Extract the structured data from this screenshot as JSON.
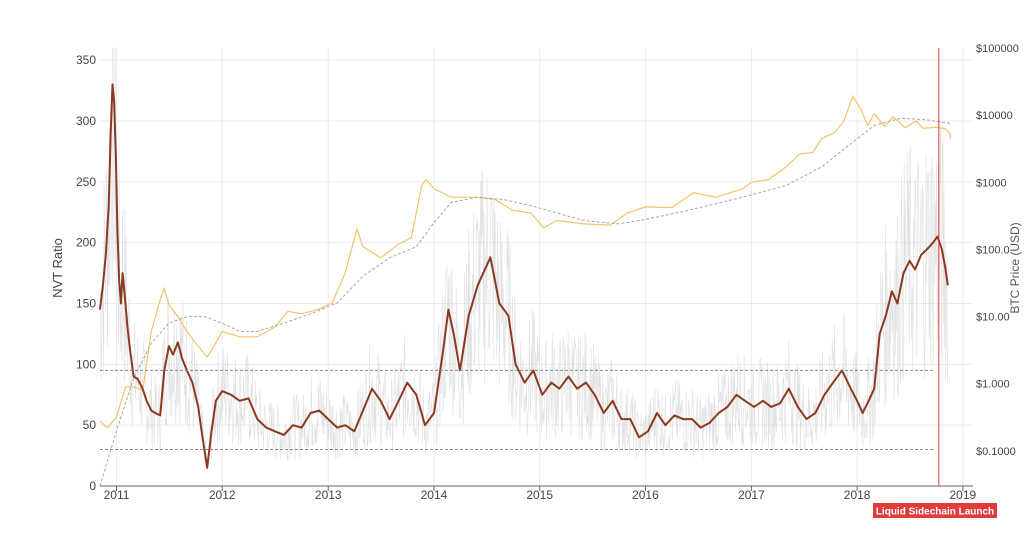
{
  "chart_data": {
    "type": "line",
    "y_axis_label": "NVT Ratio",
    "y2_axis_label": "BTC Price (USD)",
    "ylim": [
      0,
      360
    ],
    "y_ticks": [
      0,
      50,
      100,
      150,
      200,
      250,
      300,
      350
    ],
    "y2_scale": "log",
    "y2lim": [
      0.03,
      100000
    ],
    "y2_ticks": [
      {
        "value": 100000,
        "label": "$100000"
      },
      {
        "value": 10000,
        "label": "$10000"
      },
      {
        "value": 1000,
        "label": "$1000"
      },
      {
        "value": 100,
        "label": "$100.0"
      },
      {
        "value": 10,
        "label": "$10.00"
      },
      {
        "value": 1,
        "label": "$1.000"
      },
      {
        "value": 0.1,
        "label": "$0.1000"
      }
    ],
    "x_range": [
      "2010-11-05",
      "2019-02-05"
    ],
    "x_ticks": [
      {
        "date": "2011-01-01",
        "label": "2011"
      },
      {
        "date": "2012-01-01",
        "label": "2012"
      },
      {
        "date": "2013-01-01",
        "label": "2013"
      },
      {
        "date": "2014-01-01",
        "label": "2014"
      },
      {
        "date": "2015-01-01",
        "label": "2015"
      },
      {
        "date": "2016-01-01",
        "label": "2016"
      },
      {
        "date": "2017-01-01",
        "label": "2017"
      },
      {
        "date": "2018-01-01",
        "label": "2018"
      },
      {
        "date": "2019-01-01",
        "label": "2019"
      }
    ],
    "reference_lines": [
      95,
      30
    ],
    "annotation": {
      "date": "2018-10-10",
      "label": "Liquid Sidechain Launch"
    },
    "colors": {
      "nvt": "#8b3a22",
      "raw": "#d8d8d8",
      "price": "#f2c46b",
      "price_trend": "#a8a8a8",
      "reference": "#888888",
      "annotation": "#e23b3b",
      "grid": "#ececec"
    },
    "series": [
      {
        "key": "nvt",
        "points": [
          [
            "2010-11-05",
            145
          ],
          [
            "2010-11-15",
            165
          ],
          [
            "2010-11-25",
            190
          ],
          [
            "2010-12-05",
            230
          ],
          [
            "2010-12-12",
            290
          ],
          [
            "2010-12-18",
            330
          ],
          [
            "2010-12-24",
            315
          ],
          [
            "2010-12-30",
            270
          ],
          [
            "2011-01-04",
            210
          ],
          [
            "2011-01-10",
            170
          ],
          [
            "2011-01-16",
            150
          ],
          [
            "2011-01-22",
            175
          ],
          [
            "2011-01-30",
            155
          ],
          [
            "2011-02-08",
            130
          ],
          [
            "2011-02-18",
            110
          ],
          [
            "2011-03-01",
            90
          ],
          [
            "2011-03-15",
            88
          ],
          [
            "2011-04-01",
            80
          ],
          [
            "2011-04-15",
            70
          ],
          [
            "2011-05-01",
            62
          ],
          [
            "2011-05-15",
            60
          ],
          [
            "2011-06-01",
            58
          ],
          [
            "2011-06-15",
            95
          ],
          [
            "2011-07-01",
            115
          ],
          [
            "2011-07-15",
            108
          ],
          [
            "2011-08-01",
            118
          ],
          [
            "2011-08-15",
            105
          ],
          [
            "2011-09-01",
            95
          ],
          [
            "2011-09-20",
            85
          ],
          [
            "2011-10-10",
            65
          ],
          [
            "2011-10-25",
            40
          ],
          [
            "2011-11-10",
            15
          ],
          [
            "2011-11-25",
            45
          ],
          [
            "2011-12-10",
            70
          ],
          [
            "2012-01-01",
            78
          ],
          [
            "2012-02-01",
            75
          ],
          [
            "2012-03-01",
            70
          ],
          [
            "2012-04-01",
            72
          ],
          [
            "2012-05-01",
            55
          ],
          [
            "2012-06-01",
            48
          ],
          [
            "2012-07-01",
            45
          ],
          [
            "2012-08-01",
            42
          ],
          [
            "2012-09-01",
            50
          ],
          [
            "2012-10-01",
            48
          ],
          [
            "2012-11-01",
            60
          ],
          [
            "2012-12-01",
            62
          ],
          [
            "2013-01-01",
            55
          ],
          [
            "2013-02-01",
            48
          ],
          [
            "2013-03-01",
            50
          ],
          [
            "2013-04-01",
            45
          ],
          [
            "2013-05-01",
            62
          ],
          [
            "2013-06-01",
            80
          ],
          [
            "2013-07-01",
            70
          ],
          [
            "2013-08-01",
            55
          ],
          [
            "2013-09-01",
            70
          ],
          [
            "2013-10-01",
            85
          ],
          [
            "2013-11-01",
            75
          ],
          [
            "2013-12-01",
            50
          ],
          [
            "2014-01-01",
            60
          ],
          [
            "2014-02-01",
            110
          ],
          [
            "2014-02-20",
            145
          ],
          [
            "2014-03-10",
            125
          ],
          [
            "2014-04-01",
            95
          ],
          [
            "2014-05-01",
            140
          ],
          [
            "2014-06-01",
            165
          ],
          [
            "2014-07-15",
            188
          ],
          [
            "2014-08-15",
            150
          ],
          [
            "2014-09-15",
            140
          ],
          [
            "2014-10-10",
            100
          ],
          [
            "2014-11-10",
            85
          ],
          [
            "2014-12-10",
            95
          ],
          [
            "2015-01-10",
            75
          ],
          [
            "2015-02-10",
            85
          ],
          [
            "2015-03-10",
            80
          ],
          [
            "2015-04-10",
            90
          ],
          [
            "2015-05-10",
            80
          ],
          [
            "2015-06-10",
            85
          ],
          [
            "2015-07-10",
            75
          ],
          [
            "2015-08-10",
            60
          ],
          [
            "2015-09-10",
            70
          ],
          [
            "2015-10-10",
            55
          ],
          [
            "2015-11-10",
            55
          ],
          [
            "2015-12-10",
            40
          ],
          [
            "2016-01-10",
            45
          ],
          [
            "2016-02-10",
            60
          ],
          [
            "2016-03-10",
            50
          ],
          [
            "2016-04-10",
            58
          ],
          [
            "2016-05-10",
            55
          ],
          [
            "2016-06-10",
            55
          ],
          [
            "2016-07-10",
            48
          ],
          [
            "2016-08-10",
            52
          ],
          [
            "2016-09-10",
            60
          ],
          [
            "2016-10-10",
            65
          ],
          [
            "2016-11-10",
            75
          ],
          [
            "2016-12-10",
            70
          ],
          [
            "2017-01-10",
            65
          ],
          [
            "2017-02-10",
            70
          ],
          [
            "2017-03-10",
            65
          ],
          [
            "2017-04-10",
            68
          ],
          [
            "2017-05-10",
            80
          ],
          [
            "2017-06-10",
            65
          ],
          [
            "2017-07-10",
            55
          ],
          [
            "2017-08-10",
            60
          ],
          [
            "2017-09-10",
            75
          ],
          [
            "2017-10-10",
            85
          ],
          [
            "2017-11-10",
            95
          ],
          [
            "2017-12-10",
            80
          ],
          [
            "2018-01-01",
            70
          ],
          [
            "2018-01-20",
            60
          ],
          [
            "2018-02-10",
            70
          ],
          [
            "2018-03-01",
            80
          ],
          [
            "2018-03-20",
            125
          ],
          [
            "2018-04-10",
            140
          ],
          [
            "2018-05-01",
            160
          ],
          [
            "2018-05-20",
            150
          ],
          [
            "2018-06-10",
            175
          ],
          [
            "2018-07-01",
            185
          ],
          [
            "2018-07-20",
            178
          ],
          [
            "2018-08-10",
            190
          ],
          [
            "2018-09-01",
            195
          ],
          [
            "2018-09-20",
            200
          ],
          [
            "2018-10-05",
            205
          ],
          [
            "2018-10-20",
            195
          ],
          [
            "2018-11-01",
            180
          ],
          [
            "2018-11-10",
            165
          ]
        ]
      },
      {
        "key": "price",
        "points": [
          [
            "2010-11-05",
            0.28
          ],
          [
            "2010-12-01",
            0.22
          ],
          [
            "2011-01-01",
            0.32
          ],
          [
            "2011-02-01",
            0.9
          ],
          [
            "2011-03-01",
            0.9
          ],
          [
            "2011-04-01",
            0.8
          ],
          [
            "2011-05-01",
            6
          ],
          [
            "2011-06-01",
            18
          ],
          [
            "2011-06-15",
            26
          ],
          [
            "2011-07-01",
            15
          ],
          [
            "2011-08-01",
            10
          ],
          [
            "2011-09-01",
            6
          ],
          [
            "2011-10-01",
            4
          ],
          [
            "2011-11-10",
            2.5
          ],
          [
            "2011-12-01",
            3.5
          ],
          [
            "2012-01-01",
            6
          ],
          [
            "2012-03-01",
            5
          ],
          [
            "2012-05-01",
            5
          ],
          [
            "2012-07-01",
            7
          ],
          [
            "2012-08-15",
            12
          ],
          [
            "2012-10-01",
            11
          ],
          [
            "2012-12-01",
            13
          ],
          [
            "2013-01-15",
            16
          ],
          [
            "2013-03-01",
            45
          ],
          [
            "2013-04-10",
            200
          ],
          [
            "2013-05-01",
            110
          ],
          [
            "2013-07-01",
            75
          ],
          [
            "2013-09-01",
            120
          ],
          [
            "2013-10-15",
            150
          ],
          [
            "2013-11-20",
            900
          ],
          [
            "2013-12-05",
            1100
          ],
          [
            "2014-01-01",
            800
          ],
          [
            "2014-03-01",
            600
          ],
          [
            "2014-06-01",
            600
          ],
          [
            "2014-08-01",
            550
          ],
          [
            "2014-10-01",
            380
          ],
          [
            "2014-12-01",
            350
          ],
          [
            "2015-01-15",
            210
          ],
          [
            "2015-03-01",
            270
          ],
          [
            "2015-06-01",
            240
          ],
          [
            "2015-09-01",
            230
          ],
          [
            "2015-11-01",
            350
          ],
          [
            "2016-01-01",
            430
          ],
          [
            "2016-04-01",
            420
          ],
          [
            "2016-06-15",
            700
          ],
          [
            "2016-09-01",
            600
          ],
          [
            "2016-12-01",
            800
          ],
          [
            "2017-01-01",
            1000
          ],
          [
            "2017-03-01",
            1100
          ],
          [
            "2017-05-01",
            1700
          ],
          [
            "2017-06-15",
            2600
          ],
          [
            "2017-08-01",
            2800
          ],
          [
            "2017-09-01",
            4500
          ],
          [
            "2017-10-15",
            5500
          ],
          [
            "2017-11-15",
            8000
          ],
          [
            "2017-12-17",
            19000
          ],
          [
            "2018-01-15",
            12000
          ],
          [
            "2018-02-06",
            7000
          ],
          [
            "2018-03-01",
            10500
          ],
          [
            "2018-04-05",
            6800
          ],
          [
            "2018-05-05",
            9500
          ],
          [
            "2018-06-15",
            6500
          ],
          [
            "2018-07-25",
            8200
          ],
          [
            "2018-08-15",
            6400
          ],
          [
            "2018-10-01",
            6600
          ],
          [
            "2018-11-01",
            6300
          ],
          [
            "2018-11-14",
            5600
          ],
          [
            "2018-11-20",
            4500
          ]
        ]
      },
      {
        "key": "price_trend",
        "points": [
          [
            "2010-11-05",
            0.03
          ],
          [
            "2011-01-01",
            0.2
          ],
          [
            "2011-03-01",
            1.2
          ],
          [
            "2011-05-01",
            4
          ],
          [
            "2011-07-01",
            8
          ],
          [
            "2011-09-01",
            10
          ],
          [
            "2011-11-01",
            10
          ],
          [
            "2012-01-01",
            8
          ],
          [
            "2012-03-01",
            6
          ],
          [
            "2012-05-01",
            6
          ],
          [
            "2012-08-01",
            8
          ],
          [
            "2012-11-01",
            11
          ],
          [
            "2013-02-01",
            16
          ],
          [
            "2013-05-01",
            40
          ],
          [
            "2013-08-01",
            75
          ],
          [
            "2013-11-01",
            110
          ],
          [
            "2014-01-01",
            250
          ],
          [
            "2014-03-01",
            500
          ],
          [
            "2014-06-01",
            600
          ],
          [
            "2014-09-01",
            550
          ],
          [
            "2014-12-01",
            450
          ],
          [
            "2015-03-01",
            350
          ],
          [
            "2015-06-01",
            270
          ],
          [
            "2015-10-01",
            240
          ],
          [
            "2016-01-01",
            280
          ],
          [
            "2016-05-01",
            360
          ],
          [
            "2016-09-01",
            480
          ],
          [
            "2017-01-01",
            650
          ],
          [
            "2017-05-01",
            900
          ],
          [
            "2017-09-01",
            1700
          ],
          [
            "2017-12-01",
            3500
          ],
          [
            "2018-03-01",
            7000
          ],
          [
            "2018-06-01",
            9000
          ],
          [
            "2018-09-01",
            8500
          ],
          [
            "2018-11-20",
            7500
          ]
        ]
      }
    ]
  }
}
